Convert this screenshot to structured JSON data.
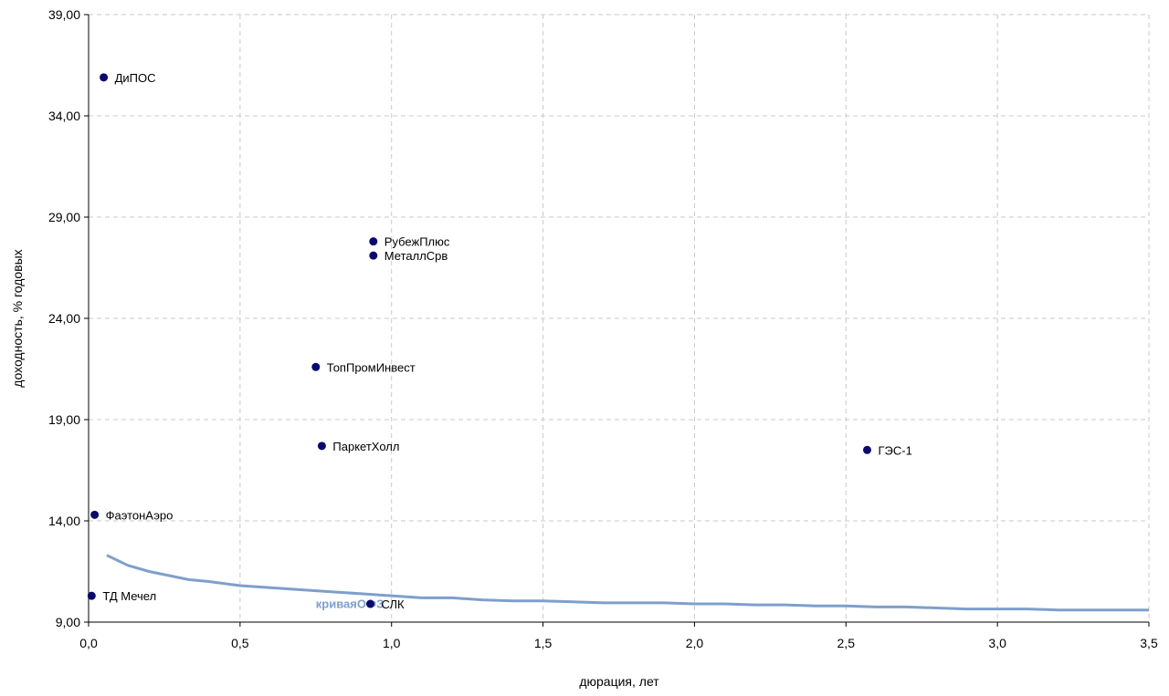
{
  "chart_data": {
    "type": "scatter",
    "xlabel": "дюрация, лет",
    "ylabel": "доходность, % годовых",
    "xlim": [
      0,
      3.5
    ],
    "ylim": [
      9,
      39
    ],
    "x_ticks": [
      0,
      0.5,
      1.0,
      1.5,
      2.0,
      2.5,
      3.0,
      3.5
    ],
    "x_tick_labels": [
      "0,0",
      "0,5",
      "1,0",
      "1,5",
      "2,0",
      "2,5",
      "3,0",
      "3,5"
    ],
    "y_ticks": [
      9,
      14,
      19,
      24,
      29,
      34,
      39
    ],
    "y_tick_labels": [
      "9,00",
      "14,00",
      "19,00",
      "24,00",
      "29,00",
      "34,00",
      "39,00"
    ],
    "grid": true,
    "colors": {
      "points": "#0a0a6e",
      "curve": "#7f9fcb",
      "grid": "#c8c8c8",
      "axis": "#000000"
    },
    "points": [
      {
        "label": "ДиПОС",
        "x": 0.05,
        "y": 35.9
      },
      {
        "label": "РубежПлюс",
        "x": 0.94,
        "y": 27.8
      },
      {
        "label": "МеталлСрв",
        "x": 0.94,
        "y": 27.1
      },
      {
        "label": "ТопПромИнвест",
        "x": 0.75,
        "y": 21.6
      },
      {
        "label": "ПаркетХолл",
        "x": 0.77,
        "y": 17.7
      },
      {
        "label": "ГЭС-1",
        "x": 2.57,
        "y": 17.5
      },
      {
        "label": "ФаэтонАэро",
        "x": 0.02,
        "y": 14.3
      },
      {
        "label": "ТД Мечел",
        "x": 0.01,
        "y": 10.3
      },
      {
        "label": "СЛК",
        "x": 0.93,
        "y": 9.9
      }
    ],
    "curve": {
      "label": "криваяОФЗ",
      "x": [
        0.06,
        0.13,
        0.2,
        0.33,
        0.4,
        0.5,
        0.6,
        0.7,
        0.8,
        0.9,
        1.0,
        1.1,
        1.15,
        1.2,
        1.3,
        1.4,
        1.5,
        1.6,
        1.7,
        1.8,
        1.9,
        2.0,
        2.1,
        2.2,
        2.3,
        2.4,
        2.5,
        2.6,
        2.7,
        2.8,
        2.9,
        3.0,
        3.1,
        3.2,
        3.3,
        3.4,
        3.5
      ],
      "y": [
        12.3,
        11.8,
        11.5,
        11.1,
        11.0,
        10.8,
        10.7,
        10.6,
        10.5,
        10.4,
        10.3,
        10.2,
        10.2,
        10.2,
        10.1,
        10.05,
        10.05,
        10.0,
        9.95,
        9.95,
        9.95,
        9.9,
        9.9,
        9.85,
        9.85,
        9.8,
        9.8,
        9.75,
        9.75,
        9.7,
        9.65,
        9.65,
        9.65,
        9.6,
        9.6,
        9.6,
        9.6
      ]
    }
  }
}
